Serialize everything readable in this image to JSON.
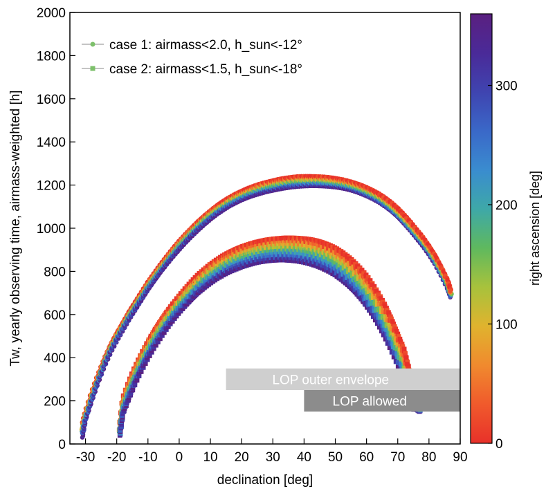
{
  "chart_data": {
    "type": "scatter",
    "xlabel": "declination [deg]",
    "ylabel": "Tw, yearly observing time, airmass-weighted [h]",
    "xlim": [
      -35,
      90
    ],
    "ylim": [
      0,
      2000
    ],
    "xticks": [
      -30,
      -20,
      -10,
      0,
      10,
      20,
      30,
      40,
      50,
      60,
      70,
      80,
      90
    ],
    "yticks": [
      0,
      200,
      400,
      600,
      800,
      1000,
      1200,
      1400,
      1600,
      1800,
      2000
    ],
    "grid": false,
    "legend": {
      "position": "top-left",
      "entries": [
        {
          "label": "case 1: airmass<2.0, h_sun<-12°",
          "marker": "circle",
          "color": "#7dc06b"
        },
        {
          "label": "case 2: airmass<1.5, h_sun<-18°",
          "marker": "square",
          "color": "#7dc06b"
        }
      ]
    },
    "colorbar": {
      "label": "right ascension [deg]",
      "range": [
        0,
        360
      ],
      "ticks": [
        0,
        100,
        200,
        300
      ],
      "colors": [
        "#e8312a",
        "#f05a2c",
        "#f08a2e",
        "#e0b32e",
        "#a8c23c",
        "#5fb95e",
        "#3ea8a8",
        "#3a8ccf",
        "#3a68c8",
        "#3f44b0",
        "#4a2a98",
        "#5a2080"
      ]
    },
    "series": [
      {
        "name": "case 1: airmass<2.0, h_sun<-12°",
        "marker": "circle",
        "dec": [
          -31,
          -30,
          -28,
          -26,
          -24,
          -22,
          -20,
          -18,
          -16,
          -14,
          -12,
          -10,
          -8,
          -6,
          -4,
          -2,
          0,
          2,
          4,
          6,
          8,
          10,
          12,
          14,
          16,
          18,
          20,
          22,
          24,
          26,
          28,
          30,
          32,
          34,
          36,
          38,
          40,
          42,
          44,
          46,
          48,
          50,
          52,
          54,
          56,
          58,
          60,
          62,
          64,
          66,
          68,
          70,
          72,
          74,
          76,
          78,
          80,
          82,
          84,
          86,
          87
        ],
        "tw_high": [
          90,
          150,
          240,
          320,
          395,
          460,
          515,
          565,
          615,
          660,
          705,
          750,
          790,
          830,
          868,
          905,
          940,
          972,
          1003,
          1032,
          1058,
          1082,
          1104,
          1124,
          1142,
          1158,
          1172,
          1185,
          1196,
          1206,
          1214,
          1221,
          1228,
          1233,
          1237,
          1240,
          1241,
          1241,
          1240,
          1239,
          1236,
          1232,
          1227,
          1220,
          1212,
          1202,
          1190,
          1176,
          1160,
          1140,
          1118,
          1092,
          1062,
          1030,
          995,
          960,
          920,
          875,
          820,
          760,
          710
        ],
        "tw_low": [
          30,
          110,
          200,
          285,
          360,
          425,
          480,
          530,
          580,
          625,
          670,
          715,
          755,
          795,
          832,
          868,
          902,
          934,
          964,
          992,
          1018,
          1042,
          1064,
          1083,
          1101,
          1116,
          1130,
          1142,
          1152,
          1161,
          1169,
          1175,
          1181,
          1186,
          1190,
          1193,
          1195,
          1196,
          1196,
          1195,
          1193,
          1190,
          1186,
          1180,
          1172,
          1162,
          1150,
          1136,
          1120,
          1100,
          1078,
          1052,
          1022,
          990,
          955,
          920,
          880,
          835,
          780,
          720,
          680
        ]
      },
      {
        "name": "case 2: airmass<1.5, h_sun<-18°",
        "marker": "square",
        "dec": [
          -19,
          -18,
          -16,
          -14,
          -12,
          -10,
          -8,
          -6,
          -4,
          -2,
          0,
          2,
          4,
          6,
          8,
          10,
          12,
          14,
          16,
          18,
          20,
          22,
          24,
          26,
          28,
          30,
          32,
          34,
          36,
          38,
          40,
          42,
          44,
          46,
          48,
          50,
          52,
          54,
          56,
          58,
          60,
          62,
          64,
          66,
          68,
          70,
          72,
          73,
          74,
          75,
          76,
          77
        ],
        "tw_high": [
          80,
          210,
          290,
          360,
          420,
          475,
          525,
          570,
          612,
          650,
          686,
          720,
          752,
          782,
          808,
          832,
          853,
          872,
          888,
          902,
          914,
          924,
          933,
          940,
          946,
          950,
          953,
          955,
          955,
          954,
          952,
          948,
          942,
          933,
          922,
          908,
          890,
          868,
          842,
          812,
          778,
          738,
          692,
          640,
          580,
          510,
          440,
          380,
          320,
          260,
          210,
          175
        ],
        "tw_low": [
          40,
          140,
          215,
          285,
          345,
          400,
          450,
          495,
          537,
          575,
          610,
          642,
          672,
          700,
          724,
          746,
          766,
          783,
          798,
          810,
          821,
          830,
          838,
          844,
          848,
          851,
          852,
          852,
          850,
          847,
          842,
          835,
          826,
          814,
          800,
          783,
          762,
          738,
          710,
          678,
          640,
          598,
          550,
          496,
          436,
          370,
          300,
          250,
          200,
          160,
          160,
          150
        ]
      }
    ],
    "annotations": [
      {
        "text": "LOP outer envelope",
        "x_range": [
          15,
          90
        ],
        "y_range": [
          250,
          350
        ],
        "color": "#cfcfcf"
      },
      {
        "text": "LOP allowed",
        "x_range": [
          40,
          90
        ],
        "y_range": [
          150,
          250
        ],
        "color": "#8c8c8c"
      }
    ]
  }
}
